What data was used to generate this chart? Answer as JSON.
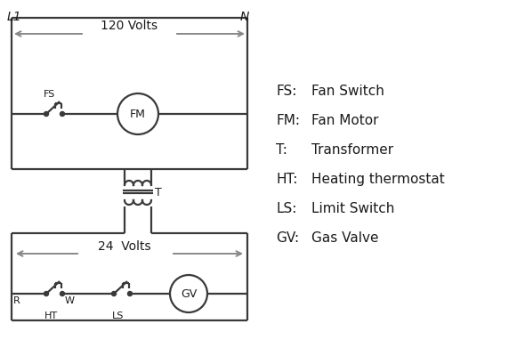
{
  "bg_color": "#ffffff",
  "line_color": "#3a3a3a",
  "arrow_color": "#888888",
  "text_color": "#1a1a1a",
  "legend_items": [
    [
      "FS:",
      "Fan Switch"
    ],
    [
      "FM:",
      "Fan Motor"
    ],
    [
      "T:",
      "Transformer"
    ],
    [
      "HT:",
      "Heating thermostat"
    ],
    [
      "LS:",
      "Limit Switch"
    ],
    [
      "GV:",
      "Gas Valve"
    ]
  ],
  "label_L1": "L1",
  "label_N": "N",
  "volts_120": "120 Volts",
  "volts_24": "24  Volts",
  "label_T": "T",
  "label_R": "R",
  "label_W": "W",
  "label_HT": "HT",
  "label_LS": "LS",
  "label_FS": "FS",
  "label_FM": "FM",
  "label_GV": "GV"
}
